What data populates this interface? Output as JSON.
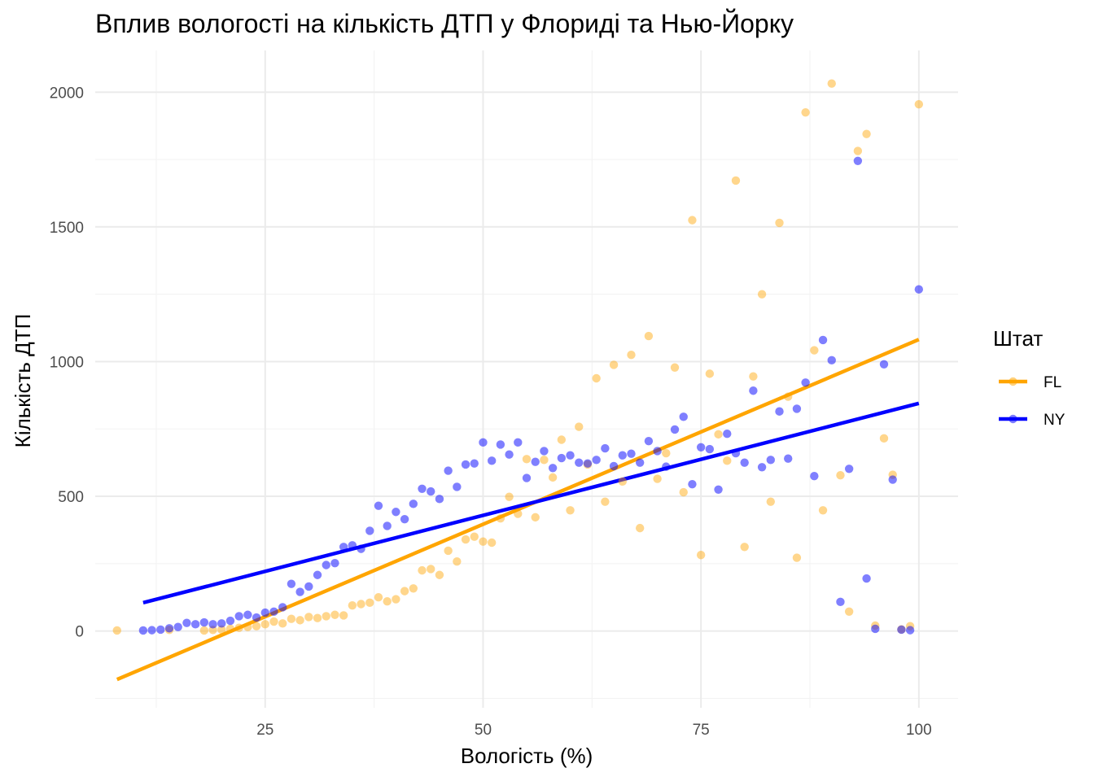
{
  "chart_data": {
    "type": "scatter",
    "title": "Вплив вологості на кількість ДТП у Флориді та Нью-Йорку",
    "xlabel": "Вологість (%)",
    "ylabel": "Кількість ДТП",
    "xlim": [
      5.5,
      104.5
    ],
    "ylim": [
      -285,
      2155
    ],
    "x_ticks": [
      25,
      50,
      75,
      100
    ],
    "y_ticks": [
      0,
      500,
      1000,
      1500,
      2000
    ],
    "grid": true,
    "legend": {
      "title": "Штат",
      "position": "right"
    },
    "series": [
      {
        "name": "FL",
        "color": "#FFA500",
        "points": [
          [
            8,
            2
          ],
          [
            14,
            4
          ],
          [
            18,
            2
          ],
          [
            19,
            4
          ],
          [
            20,
            5
          ],
          [
            21,
            8
          ],
          [
            22,
            12
          ],
          [
            23,
            15
          ],
          [
            24,
            18
          ],
          [
            25,
            25
          ],
          [
            26,
            35
          ],
          [
            27,
            28
          ],
          [
            28,
            45
          ],
          [
            29,
            40
          ],
          [
            30,
            52
          ],
          [
            31,
            48
          ],
          [
            32,
            55
          ],
          [
            33,
            60
          ],
          [
            34,
            58
          ],
          [
            35,
            95
          ],
          [
            36,
            100
          ],
          [
            37,
            105
          ],
          [
            38,
            125
          ],
          [
            39,
            110
          ],
          [
            40,
            118
          ],
          [
            41,
            148
          ],
          [
            42,
            158
          ],
          [
            43,
            225
          ],
          [
            44,
            230
          ],
          [
            45,
            208
          ],
          [
            46,
            298
          ],
          [
            47,
            258
          ],
          [
            48,
            340
          ],
          [
            49,
            350
          ],
          [
            50,
            332
          ],
          [
            51,
            328
          ],
          [
            52,
            418
          ],
          [
            53,
            498
          ],
          [
            54,
            435
          ],
          [
            55,
            638
          ],
          [
            56,
            422
          ],
          [
            57,
            635
          ],
          [
            58,
            570
          ],
          [
            59,
            710
          ],
          [
            60,
            448
          ],
          [
            61,
            758
          ],
          [
            62,
            618
          ],
          [
            63,
            938
          ],
          [
            64,
            480
          ],
          [
            65,
            988
          ],
          [
            66,
            555
          ],
          [
            67,
            1025
          ],
          [
            68,
            382
          ],
          [
            69,
            1095
          ],
          [
            70,
            565
          ],
          [
            71,
            660
          ],
          [
            72,
            978
          ],
          [
            73,
            515
          ],
          [
            74,
            1525
          ],
          [
            75,
            282
          ],
          [
            76,
            955
          ],
          [
            77,
            730
          ],
          [
            78,
            632
          ],
          [
            79,
            1672
          ],
          [
            80,
            312
          ],
          [
            81,
            945
          ],
          [
            82,
            1250
          ],
          [
            83,
            480
          ],
          [
            84,
            1515
          ],
          [
            85,
            870
          ],
          [
            86,
            272
          ],
          [
            87,
            1925
          ],
          [
            88,
            1042
          ],
          [
            89,
            448
          ],
          [
            90,
            2032
          ],
          [
            91,
            578
          ],
          [
            92,
            72
          ],
          [
            93,
            1782
          ],
          [
            94,
            1845
          ],
          [
            95,
            20
          ],
          [
            96,
            715
          ],
          [
            97,
            580
          ],
          [
            98,
            6
          ],
          [
            99,
            18
          ],
          [
            100,
            1955
          ]
        ],
        "trend": [
          [
            8,
            -180
          ],
          [
            100,
            1082
          ]
        ]
      },
      {
        "name": "NY",
        "color": "#0000FF",
        "points": [
          [
            11,
            2
          ],
          [
            12,
            3
          ],
          [
            13,
            5
          ],
          [
            14,
            10
          ],
          [
            15,
            15
          ],
          [
            16,
            30
          ],
          [
            17,
            25
          ],
          [
            18,
            32
          ],
          [
            19,
            25
          ],
          [
            20,
            28
          ],
          [
            21,
            38
          ],
          [
            22,
            55
          ],
          [
            23,
            60
          ],
          [
            24,
            50
          ],
          [
            25,
            68
          ],
          [
            26,
            72
          ],
          [
            27,
            88
          ],
          [
            28,
            175
          ],
          [
            29,
            145
          ],
          [
            30,
            165
          ],
          [
            31,
            208
          ],
          [
            32,
            245
          ],
          [
            33,
            252
          ],
          [
            34,
            312
          ],
          [
            35,
            318
          ],
          [
            36,
            305
          ],
          [
            37,
            372
          ],
          [
            38,
            465
          ],
          [
            39,
            390
          ],
          [
            40,
            442
          ],
          [
            41,
            415
          ],
          [
            42,
            472
          ],
          [
            43,
            528
          ],
          [
            44,
            518
          ],
          [
            45,
            490
          ],
          [
            46,
            595
          ],
          [
            47,
            535
          ],
          [
            48,
            618
          ],
          [
            49,
            622
          ],
          [
            50,
            700
          ],
          [
            51,
            632
          ],
          [
            52,
            692
          ],
          [
            53,
            655
          ],
          [
            54,
            700
          ],
          [
            55,
            568
          ],
          [
            56,
            628
          ],
          [
            57,
            668
          ],
          [
            58,
            605
          ],
          [
            59,
            642
          ],
          [
            60,
            652
          ],
          [
            61,
            625
          ],
          [
            62,
            622
          ],
          [
            63,
            635
          ],
          [
            64,
            678
          ],
          [
            65,
            612
          ],
          [
            66,
            652
          ],
          [
            67,
            658
          ],
          [
            68,
            625
          ],
          [
            69,
            705
          ],
          [
            70,
            668
          ],
          [
            71,
            610
          ],
          [
            72,
            748
          ],
          [
            73,
            795
          ],
          [
            74,
            545
          ],
          [
            75,
            682
          ],
          [
            76,
            675
          ],
          [
            77,
            525
          ],
          [
            78,
            732
          ],
          [
            79,
            660
          ],
          [
            80,
            625
          ],
          [
            81,
            892
          ],
          [
            82,
            608
          ],
          [
            83,
            635
          ],
          [
            84,
            815
          ],
          [
            85,
            640
          ],
          [
            86,
            825
          ],
          [
            87,
            922
          ],
          [
            88,
            575
          ],
          [
            89,
            1080
          ],
          [
            90,
            1005
          ],
          [
            91,
            108
          ],
          [
            92,
            602
          ],
          [
            93,
            1745
          ],
          [
            94,
            195
          ],
          [
            95,
            8
          ],
          [
            96,
            990
          ],
          [
            97,
            562
          ],
          [
            98,
            5
          ],
          [
            99,
            3
          ],
          [
            100,
            1268
          ]
        ],
        "trend": [
          [
            11,
            105
          ],
          [
            100,
            845
          ]
        ]
      }
    ]
  }
}
